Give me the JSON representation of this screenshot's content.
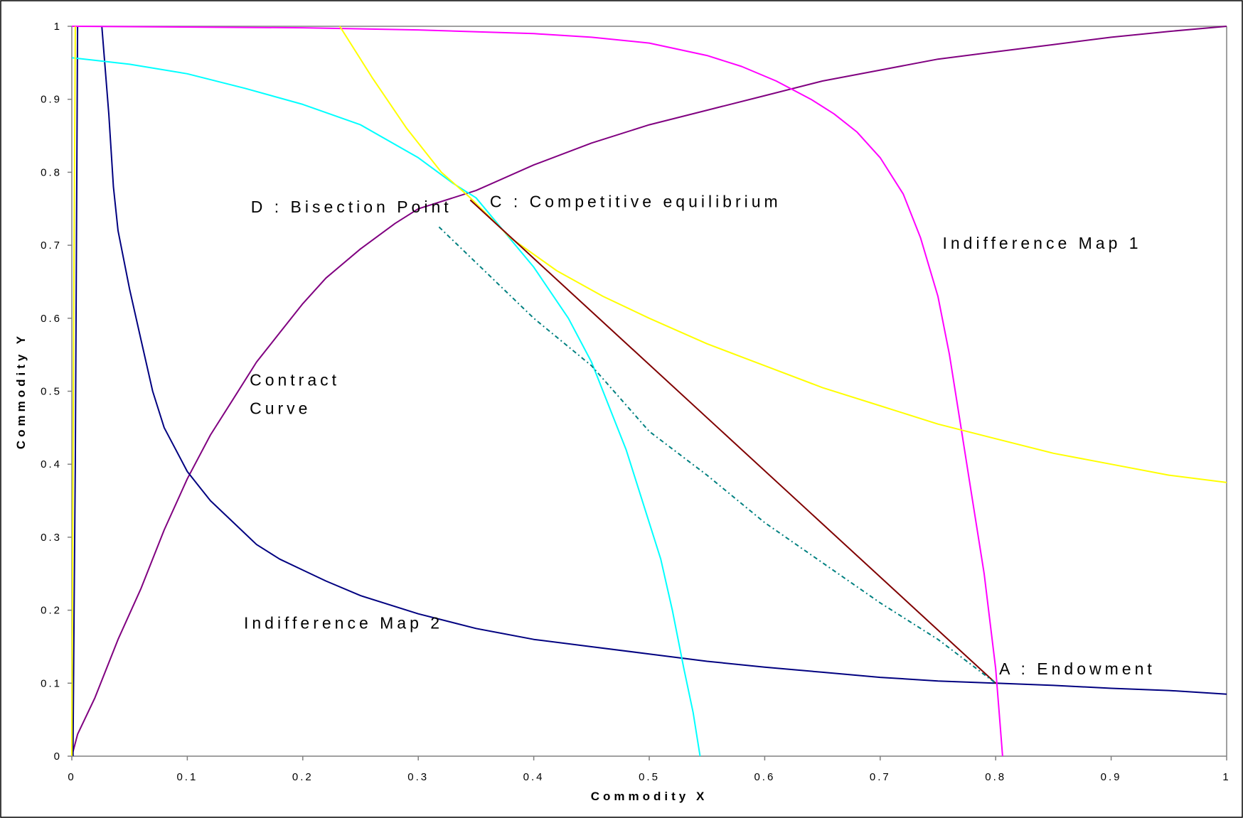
{
  "chart_data": {
    "type": "line",
    "xlabel": "Commodity X",
    "ylabel": "Commodity Y",
    "xlim": [
      0,
      1
    ],
    "ylim": [
      0,
      1
    ],
    "x_ticks": [
      "0",
      "0.1",
      "0.2",
      "0.3",
      "0.4",
      "0.5",
      "0.6",
      "0.7",
      "0.8",
      "0.9",
      "1"
    ],
    "y_ticks": [
      "0",
      "0.1",
      "0.2",
      "0.3",
      "0.4",
      "0.5",
      "0.6",
      "0.7",
      "0.8",
      "0.9",
      "1"
    ],
    "grid": false,
    "annotations": [
      {
        "text": "D : Bisection Point",
        "x": 0.155,
        "y": 0.745
      },
      {
        "text": "C : Competitive equilibrium",
        "x": 0.362,
        "y": 0.752
      },
      {
        "text": "Indifference Map 1",
        "x": 0.754,
        "y": 0.695
      },
      {
        "text": "Contract",
        "x": 0.154,
        "y": 0.508
      },
      {
        "text": "Curve",
        "x": 0.154,
        "y": 0.469
      },
      {
        "text": "Indifference Map 2",
        "x": 0.149,
        "y": 0.175
      },
      {
        "text": "A : Endowment",
        "x": 0.803,
        "y": 0.112
      }
    ],
    "series": [
      {
        "color": "#800080",
        "style": "solid",
        "values": [
          [
            0,
            0
          ],
          [
            0.005,
            0.03
          ],
          [
            0.02,
            0.08
          ],
          [
            0.04,
            0.16
          ],
          [
            0.06,
            0.23
          ],
          [
            0.08,
            0.31
          ],
          [
            0.1,
            0.38
          ],
          [
            0.12,
            0.44
          ],
          [
            0.14,
            0.49
          ],
          [
            0.16,
            0.54
          ],
          [
            0.18,
            0.58
          ],
          [
            0.2,
            0.62
          ],
          [
            0.22,
            0.655
          ],
          [
            0.25,
            0.695
          ],
          [
            0.28,
            0.73
          ],
          [
            0.3,
            0.75
          ],
          [
            0.35,
            0.775
          ],
          [
            0.4,
            0.81
          ],
          [
            0.45,
            0.84
          ],
          [
            0.5,
            0.865
          ],
          [
            0.55,
            0.885
          ],
          [
            0.6,
            0.905
          ],
          [
            0.65,
            0.925
          ],
          [
            0.7,
            0.94
          ],
          [
            0.75,
            0.955
          ],
          [
            0.8,
            0.965
          ],
          [
            0.85,
            0.975
          ],
          [
            0.9,
            0.985
          ],
          [
            0.95,
            0.993
          ],
          [
            1.0,
            1.0
          ]
        ]
      },
      {
        "color": "#000080",
        "style": "solid",
        "values": [
          [
            0.026,
            1.0
          ],
          [
            0.032,
            0.88
          ],
          [
            0.036,
            0.78
          ],
          [
            0.04,
            0.72
          ],
          [
            0.05,
            0.64
          ],
          [
            0.06,
            0.57
          ],
          [
            0.07,
            0.5
          ],
          [
            0.08,
            0.45
          ],
          [
            0.09,
            0.42
          ],
          [
            0.1,
            0.39
          ],
          [
            0.11,
            0.37
          ],
          [
            0.12,
            0.35
          ],
          [
            0.14,
            0.32
          ],
          [
            0.16,
            0.29
          ],
          [
            0.18,
            0.27
          ],
          [
            0.2,
            0.255
          ],
          [
            0.22,
            0.24
          ],
          [
            0.25,
            0.22
          ],
          [
            0.3,
            0.195
          ],
          [
            0.35,
            0.175
          ],
          [
            0.4,
            0.16
          ],
          [
            0.45,
            0.15
          ],
          [
            0.5,
            0.14
          ],
          [
            0.55,
            0.13
          ],
          [
            0.6,
            0.122
          ],
          [
            0.65,
            0.115
          ],
          [
            0.7,
            0.108
          ],
          [
            0.75,
            0.103
          ],
          [
            0.8,
            0.1
          ],
          [
            0.85,
            0.097
          ],
          [
            0.9,
            0.093
          ],
          [
            0.95,
            0.09
          ],
          [
            1.0,
            0.085
          ]
        ]
      },
      {
        "color": "#000080",
        "style": "solid",
        "values": [
          [
            0.005,
            1.0
          ],
          [
            0.004,
            0.7
          ],
          [
            0.003,
            0.4
          ],
          [
            0.002,
            0.2
          ],
          [
            0.001,
            0.0
          ]
        ]
      },
      {
        "color": "#FF00FF",
        "style": "solid",
        "values": [
          [
            0.0,
            1.0
          ],
          [
            0.2,
            0.998
          ],
          [
            0.3,
            0.995
          ],
          [
            0.4,
            0.99
          ],
          [
            0.45,
            0.985
          ],
          [
            0.5,
            0.977
          ],
          [
            0.55,
            0.96
          ],
          [
            0.58,
            0.945
          ],
          [
            0.61,
            0.925
          ],
          [
            0.64,
            0.9
          ],
          [
            0.66,
            0.88
          ],
          [
            0.68,
            0.855
          ],
          [
            0.7,
            0.82
          ],
          [
            0.72,
            0.77
          ],
          [
            0.735,
            0.71
          ],
          [
            0.75,
            0.63
          ],
          [
            0.76,
            0.55
          ],
          [
            0.77,
            0.45
          ],
          [
            0.78,
            0.35
          ],
          [
            0.79,
            0.25
          ],
          [
            0.8,
            0.12
          ],
          [
            0.803,
            0.06
          ],
          [
            0.806,
            0.0
          ]
        ]
      },
      {
        "color": "#00FFFF",
        "style": "solid",
        "values": [
          [
            0.0,
            0.957
          ],
          [
            0.05,
            0.948
          ],
          [
            0.1,
            0.935
          ],
          [
            0.15,
            0.915
          ],
          [
            0.2,
            0.893
          ],
          [
            0.25,
            0.865
          ],
          [
            0.3,
            0.82
          ],
          [
            0.33,
            0.785
          ],
          [
            0.35,
            0.765
          ],
          [
            0.4,
            0.67
          ],
          [
            0.43,
            0.6
          ],
          [
            0.45,
            0.54
          ],
          [
            0.48,
            0.42
          ],
          [
            0.5,
            0.32
          ],
          [
            0.51,
            0.27
          ],
          [
            0.52,
            0.2
          ],
          [
            0.53,
            0.12
          ],
          [
            0.538,
            0.06
          ],
          [
            0.544,
            0.0
          ]
        ]
      },
      {
        "color": "#FFFF00",
        "style": "solid",
        "values": [
          [
            0.232,
            1.0
          ],
          [
            0.26,
            0.93
          ],
          [
            0.29,
            0.86
          ],
          [
            0.32,
            0.8
          ],
          [
            0.345,
            0.765
          ],
          [
            0.38,
            0.71
          ],
          [
            0.42,
            0.665
          ],
          [
            0.46,
            0.63
          ],
          [
            0.5,
            0.6
          ],
          [
            0.55,
            0.565
          ],
          [
            0.6,
            0.535
          ],
          [
            0.65,
            0.505
          ],
          [
            0.7,
            0.48
          ],
          [
            0.75,
            0.455
          ],
          [
            0.8,
            0.435
          ],
          [
            0.85,
            0.415
          ],
          [
            0.9,
            0.4
          ],
          [
            0.95,
            0.385
          ],
          [
            1.0,
            0.375
          ]
        ]
      },
      {
        "color": "#FFFF00",
        "style": "solid",
        "values": [
          [
            0.003,
            1.0
          ],
          [
            0.002,
            0.7
          ],
          [
            0.001,
            0.4
          ],
          [
            0.0,
            0.0
          ]
        ]
      },
      {
        "color": "#800000",
        "style": "solid",
        "values": [
          [
            0.345,
            0.762
          ],
          [
            0.8,
            0.1
          ]
        ]
      },
      {
        "color": "#008080",
        "style": "dashed",
        "values": [
          [
            0.318,
            0.725
          ],
          [
            0.4,
            0.6
          ],
          [
            0.45,
            0.535
          ],
          [
            0.5,
            0.445
          ],
          [
            0.55,
            0.385
          ],
          [
            0.6,
            0.32
          ],
          [
            0.65,
            0.265
          ],
          [
            0.7,
            0.21
          ],
          [
            0.75,
            0.16
          ],
          [
            0.8,
            0.1
          ]
        ]
      }
    ]
  }
}
